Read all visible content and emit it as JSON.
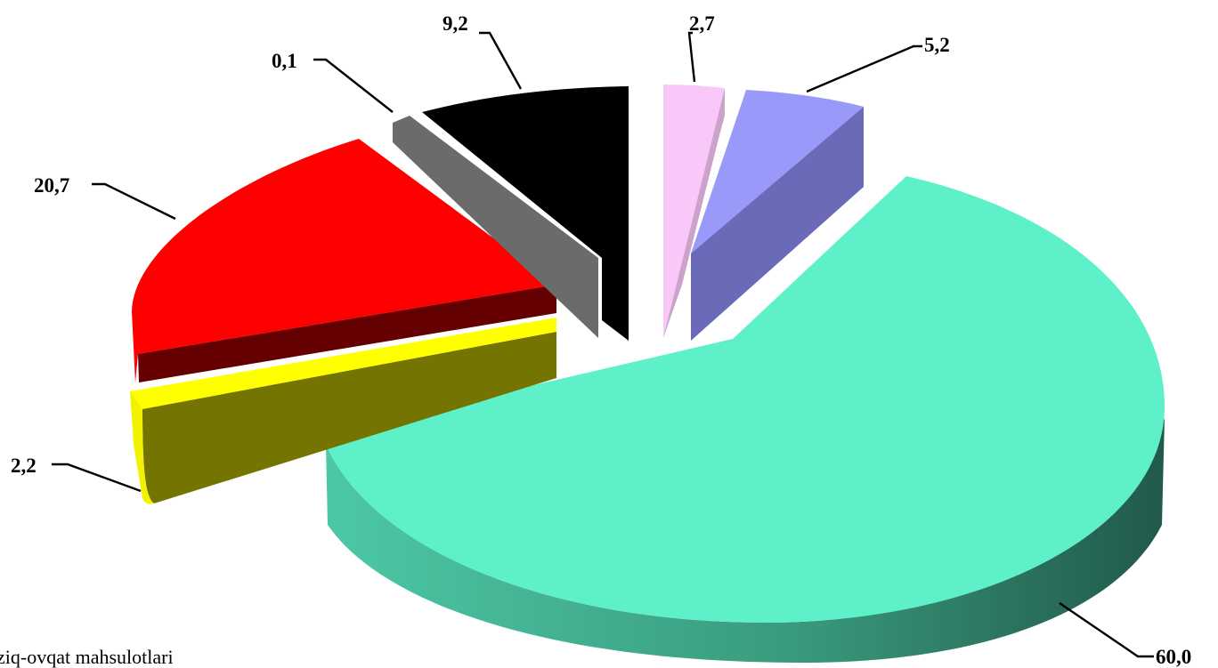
{
  "chart_data": {
    "type": "pie",
    "style": "3d-exploded",
    "slices": [
      {
        "value": 60.0,
        "label": "60,0",
        "color": "#5ef0c8",
        "side_color": "#2b6b54"
      },
      {
        "value": 2.2,
        "label": "2,2",
        "color": "#ffff00",
        "side_color": "#747400"
      },
      {
        "value": 20.7,
        "label": "20,7",
        "color": "#ff0000",
        "side_color": "#640000"
      },
      {
        "value": 0.1,
        "label": "0,1",
        "color": "#6b6b6b",
        "side_color": "#4a4a4a"
      },
      {
        "value": 9.2,
        "label": "9,2",
        "color": "#000000",
        "side_color": "#000000"
      },
      {
        "value": 2.7,
        "label": "2,7",
        "color": "#f9c8f9",
        "side_color": "#caa2ca"
      },
      {
        "value": 5.2,
        "label": "5,2",
        "color": "#9999f9",
        "side_color": "#6a6ab8"
      }
    ],
    "legend": {
      "visible_entry": "ziq-ovqat mahsulotlari",
      "placement": "bottom-left"
    }
  }
}
